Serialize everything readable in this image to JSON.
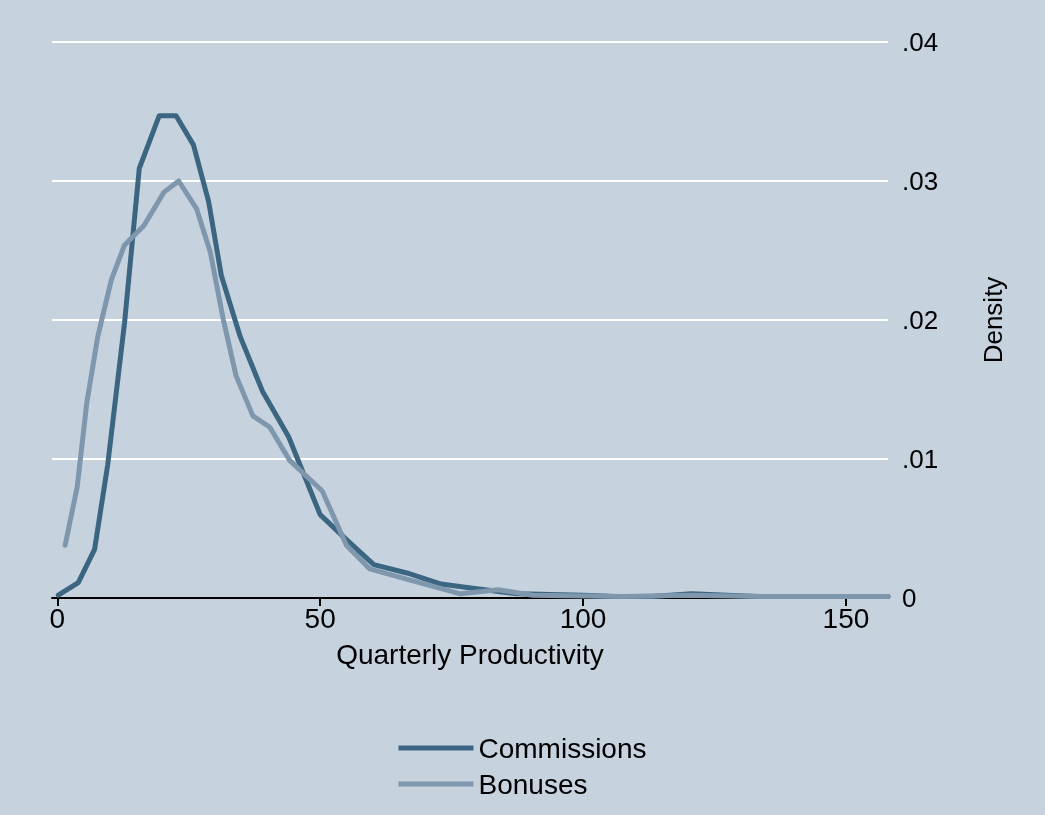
{
  "chart_data": {
    "type": "line",
    "xlabel": "Quarterly Productivity",
    "ylabel": "Density",
    "xlim": [
      -1,
      158
    ],
    "xticks": [
      0,
      50,
      100,
      150
    ],
    "ylim": [
      0,
      0.04
    ],
    "yticks": [
      {
        "value": 0,
        "label": "0"
      },
      {
        "value": 0.01,
        "label": ".01"
      },
      {
        "value": 0.02,
        "label": ".02"
      },
      {
        "value": 0.03,
        "label": ".03"
      },
      {
        "value": 0.04,
        "label": ".04"
      }
    ],
    "grid": "y",
    "legend": "bottom",
    "marker": "none",
    "line_style": "solid",
    "series": [
      {
        "name": "Commissions",
        "color": "#3b6580",
        "x": [
          0.2,
          4,
          7.1,
          9.6,
          12.8,
          15.6,
          19.4,
          22.6,
          25.9,
          28.8,
          31.2,
          34.8,
          39,
          44,
          50,
          55,
          60.2,
          66.5,
          73,
          79,
          87.6,
          100,
          106,
          113,
          120.7,
          133,
          145,
          158
        ],
        "values": [
          0.0002,
          0.0011,
          0.0035,
          0.0096,
          0.0198,
          0.0309,
          0.0347,
          0.0347,
          0.0326,
          0.0285,
          0.0232,
          0.0188,
          0.0149,
          0.0116,
          0.006,
          0.0042,
          0.0024,
          0.0018,
          0.001,
          0.0007,
          0.0003,
          0.0002,
          0.0001,
          0.0001,
          0.0003,
          0.0001,
          0.0001,
          0.0001
        ]
      },
      {
        "name": "Bonuses",
        "color": "#7f97ad",
        "x": [
          1.5,
          3.8,
          5.6,
          7.7,
          10.3,
          12.8,
          16.5,
          20.3,
          23.1,
          26.5,
          29.1,
          31.6,
          34,
          37.2,
          40.4,
          44.2,
          50.4,
          55,
          59.4,
          68,
          76.7,
          83.8,
          90.4,
          107.7,
          120,
          135,
          158
        ],
        "values": [
          0.0038,
          0.008,
          0.014,
          0.0188,
          0.0229,
          0.0254,
          0.0268,
          0.0292,
          0.03,
          0.028,
          0.0249,
          0.02,
          0.016,
          0.0131,
          0.0123,
          0.0099,
          0.0077,
          0.0038,
          0.0021,
          0.0012,
          0.0003,
          0.0006,
          0.0002,
          0.0001,
          0.0002,
          0.0001,
          0.0001
        ]
      }
    ]
  }
}
